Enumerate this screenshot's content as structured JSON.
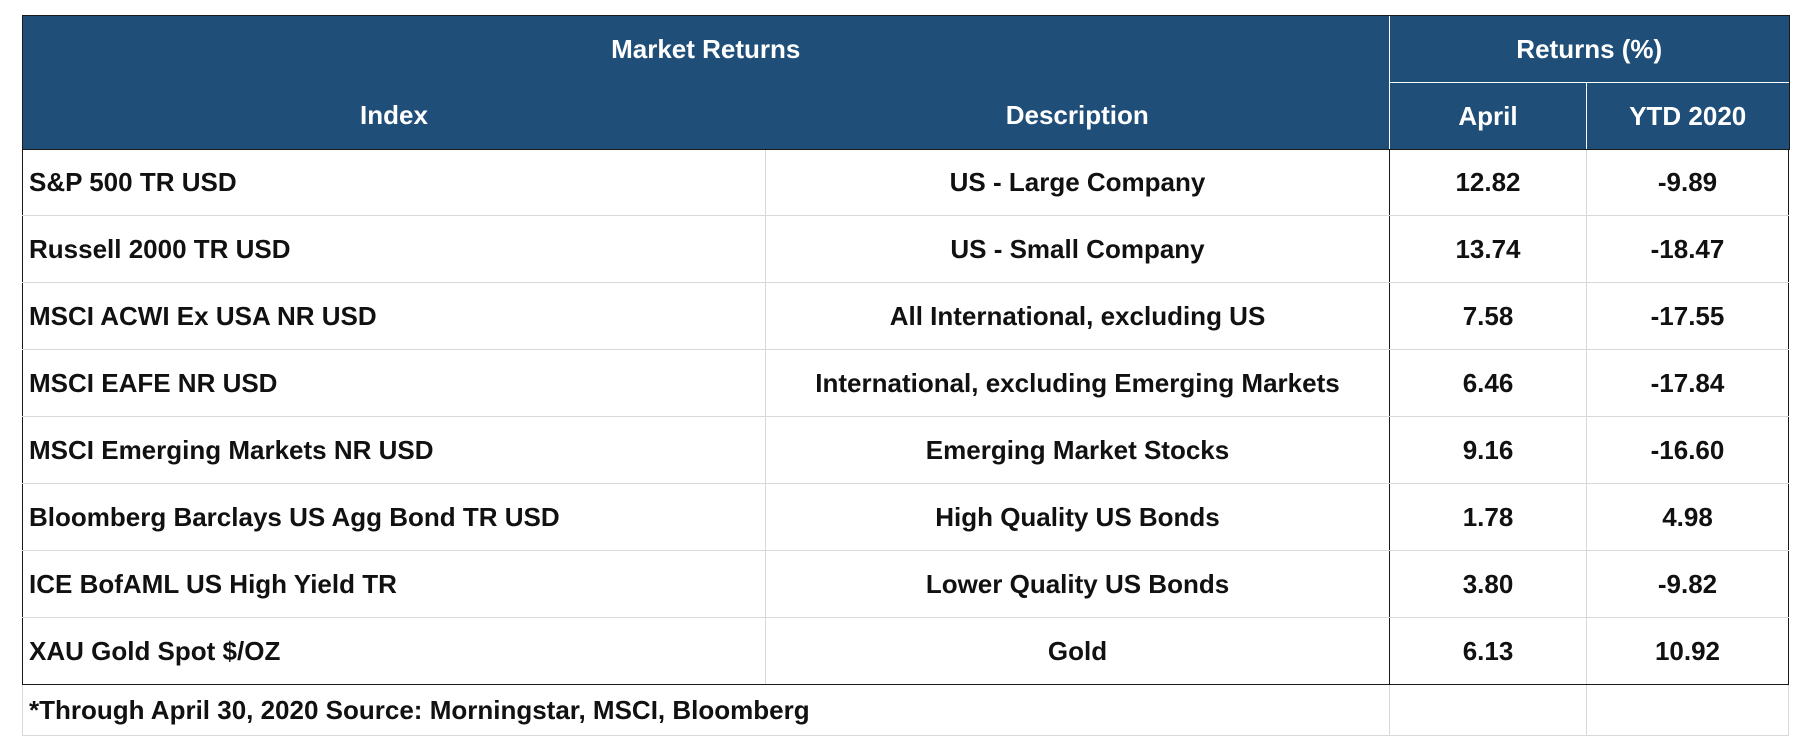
{
  "header": {
    "title": "Market Returns",
    "returns_group": "Returns (%)",
    "columns": {
      "index": "Index",
      "description": "Description",
      "april": "April",
      "ytd": "YTD 2020"
    }
  },
  "rows": [
    {
      "index": "S&P 500 TR USD",
      "description": "US - Large Company",
      "april": "12.82",
      "ytd": "-9.89"
    },
    {
      "index": "Russell 2000 TR USD",
      "description": "US - Small Company",
      "april": "13.74",
      "ytd": "-18.47"
    },
    {
      "index": "MSCI ACWI Ex USA NR USD",
      "description": "All International, excluding US",
      "april": "7.58",
      "ytd": "-17.55"
    },
    {
      "index": "MSCI EAFE NR USD",
      "description": "International, excluding Emerging Markets",
      "april": "6.46",
      "ytd": "-17.84"
    },
    {
      "index": "MSCI Emerging Markets NR USD",
      "description": "Emerging Market Stocks",
      "april": "9.16",
      "ytd": "-16.60"
    },
    {
      "index": "Bloomberg Barclays US Agg Bond TR USD",
      "description": "High Quality US Bonds",
      "april": "1.78",
      "ytd": "4.98"
    },
    {
      "index": "ICE BofAML US High Yield TR",
      "description": "Lower Quality US Bonds",
      "april": "3.80",
      "ytd": "-9.82"
    },
    {
      "index": "XAU Gold Spot $/OZ",
      "description": "Gold",
      "april": "6.13",
      "ytd": "10.92"
    }
  ],
  "footnote": "*Through April 30, 2020 Source: Morningstar, MSCI, Bloomberg",
  "colors": {
    "header_bg": "#1f4e79",
    "header_text": "#ffffff",
    "body_text": "#111111"
  }
}
